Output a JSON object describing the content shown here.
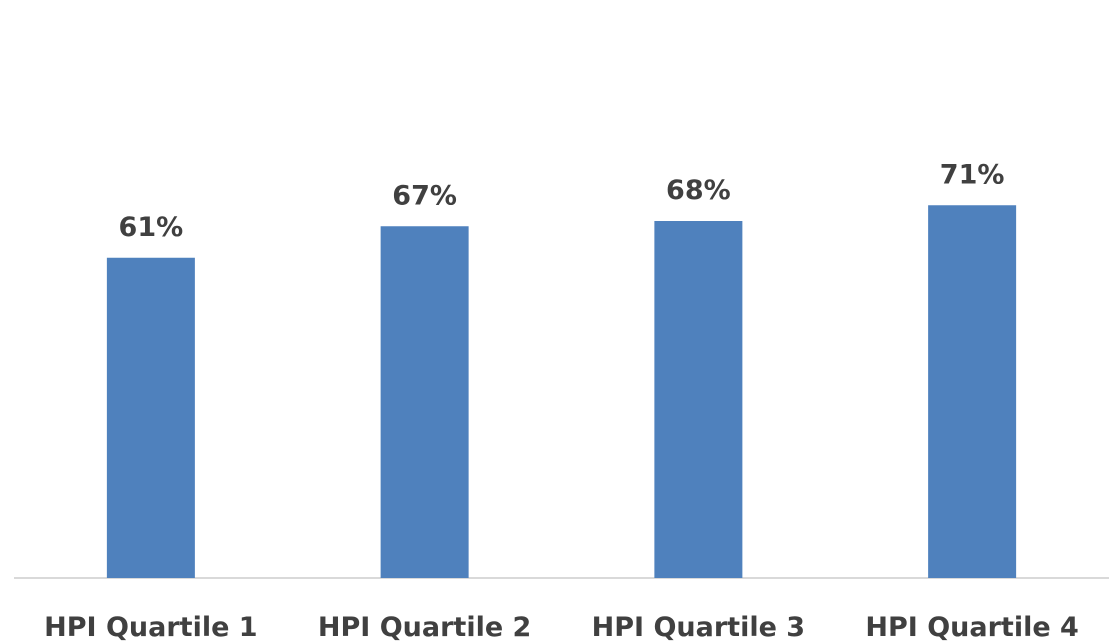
{
  "chart_data": {
    "type": "bar",
    "categories": [
      "HPI Quartile 1",
      "HPI Quartile 2",
      "HPI Quartile 3",
      "HPI Quartile 4"
    ],
    "values": [
      61,
      67,
      68,
      71
    ],
    "data_labels": [
      "61%",
      "67%",
      "68%",
      "71%"
    ],
    "title": "",
    "xlabel": "",
    "ylabel": "",
    "ylim": [
      0,
      80
    ],
    "grid": false,
    "legend": "none",
    "bar_color": "#4F81BD",
    "axis_color": "#D9D9D9",
    "label_color": "#404040"
  }
}
